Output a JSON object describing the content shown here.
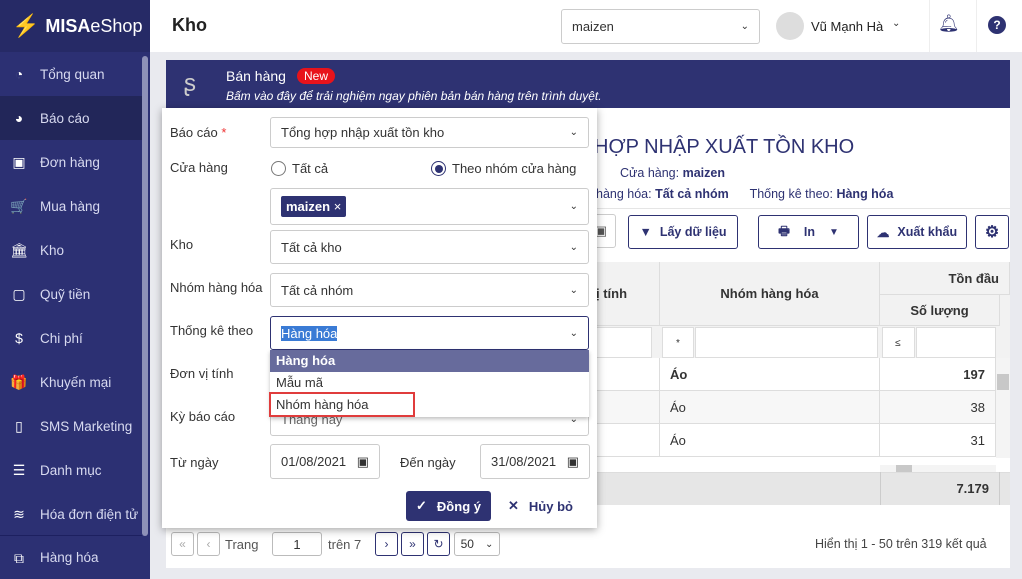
{
  "brand": {
    "name_bold": "MISA",
    "name_rest": "eShop"
  },
  "sidebar": {
    "items": [
      {
        "label": "Tổng quan",
        "icon": "dashboard-icon",
        "glyph": "◔"
      },
      {
        "label": "Báo cáo",
        "icon": "pie-chart-icon",
        "glyph": "◕"
      },
      {
        "label": "Đơn hàng",
        "icon": "truck-icon",
        "glyph": "▣"
      },
      {
        "label": "Mua hàng",
        "icon": "cart-icon",
        "glyph": "🛒"
      },
      {
        "label": "Kho",
        "icon": "bank-icon",
        "glyph": "🏛"
      },
      {
        "label": "Quỹ tiền",
        "icon": "safe-icon",
        "glyph": "▢"
      },
      {
        "label": "Chi phí",
        "icon": "money-bag-icon",
        "glyph": "$"
      },
      {
        "label": "Khuyến mại",
        "icon": "gift-icon",
        "glyph": "🎁"
      },
      {
        "label": "SMS Marketing",
        "icon": "phone-icon",
        "glyph": "▯"
      },
      {
        "label": "Danh mục",
        "icon": "list-icon",
        "glyph": "☰"
      },
      {
        "label": "Hóa đơn điện tử",
        "icon": "invoice-icon",
        "glyph": "≋"
      },
      {
        "label": "Hàng hóa",
        "icon": "boxes-icon",
        "glyph": "⧉"
      }
    ]
  },
  "header": {
    "title": "Kho",
    "store_select": "maizen",
    "user": "Vũ Mạnh Hà"
  },
  "banner": {
    "title": "Bán hàng",
    "badge": "New",
    "subtitle": "Bấm vào đây để trải nghiệm ngay phiên bản bán hàng trên trình duyệt."
  },
  "report": {
    "title": "HỢP NHẬP XUẤT TỒN KHO",
    "store_label": "Cửa hàng:",
    "store_value": "maizen",
    "group_label": "hàng hóa:",
    "group_value": "Tất cả nhóm",
    "stat_label": "Thống kê theo:",
    "stat_value": "Hàng hóa"
  },
  "toolbar": {
    "fetch": "Lấy dữ liệu",
    "print": "In",
    "export": "Xuất khẩu"
  },
  "table": {
    "col_unit": "ị tính",
    "col_group": "Nhóm hàng hóa",
    "col_opening": "Tồn đầu",
    "col_qty": "Số lượng",
    "filter_group_op": "*",
    "filter_qty_op": "≤",
    "rows": [
      {
        "group": "Áo",
        "qty": "197",
        "bold": true
      },
      {
        "group": "Áo",
        "qty": "38"
      },
      {
        "group": "Áo",
        "qty": "31"
      }
    ],
    "total_qty": "7.179"
  },
  "pager": {
    "page_label": "Trang",
    "page": "1",
    "of": "trên 7",
    "page_size": "50",
    "summary": "Hiển thị 1 - 50 trên 319 kết quả"
  },
  "dialog": {
    "report_label": "Báo cáo",
    "required": "*",
    "report_value": "Tổng hợp nhập xuất tồn kho",
    "store_label": "Cửa hàng",
    "radio_all": "Tất cả",
    "radio_group": "Theo nhóm cửa hàng",
    "radio_selected": "Theo nhóm cửa hàng",
    "store_tag": "maizen",
    "warehouse_label": "Kho",
    "warehouse_value": "Tất cả kho",
    "group_label": "Nhóm hàng hóa",
    "group_value": "Tất cả nhóm",
    "stat_label": "Thống kê theo",
    "stat_value": "Hàng hóa",
    "stat_options": [
      "Hàng hóa",
      "Mẫu mã",
      "Nhóm hàng hóa"
    ],
    "unit_label": "Đơn vị tính",
    "period_label": "Kỳ báo cáo",
    "period_value": "Tháng này",
    "from_label": "Từ ngày",
    "from_value": "01/08/2021",
    "to_label": "Đến ngày",
    "to_value": "31/08/2021",
    "ok": "Đồng ý",
    "cancel": "Hủy bỏ"
  },
  "colors": {
    "navy": "#2e3272",
    "sidebar": "#2c3073",
    "badge": "#e8131b",
    "highlight_box": "#e03c3c"
  }
}
